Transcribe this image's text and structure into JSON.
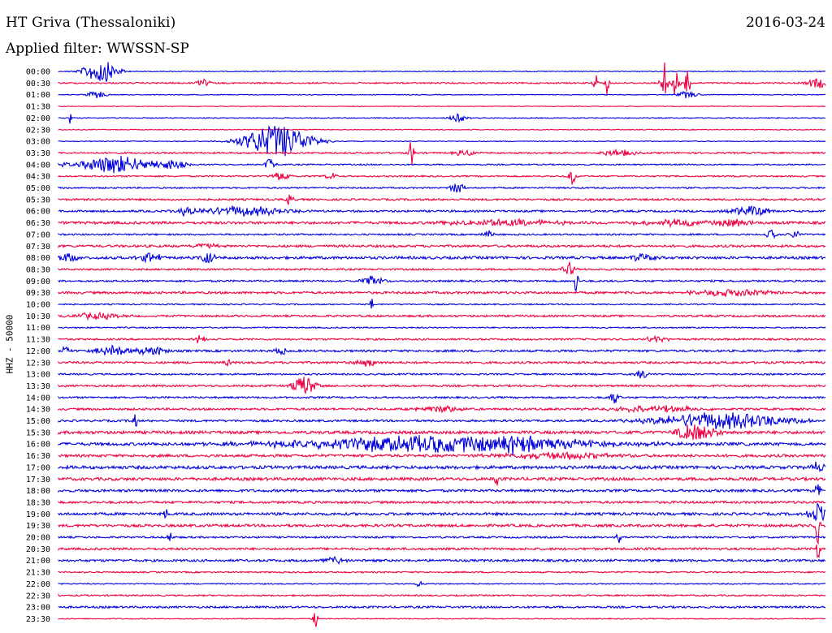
{
  "header": {
    "station": "HT Griva (Thessaloniki)",
    "date": "2016-03-24",
    "filter": "Applied filter: WWSSN-SP"
  },
  "axis": {
    "channel_label": "HHZ - 50000"
  },
  "colors": {
    "trace_a": "#0000dd",
    "trace_b": "#ee0040",
    "text": "#000000",
    "background": "#ffffff"
  },
  "chart_data": {
    "type": "line",
    "title": "HT Griva (Thessaloniki)",
    "subtitle": "Applied filter: WWSSN-SP",
    "ylabel": "HHZ - 50000",
    "row_colors": [
      "#0000dd",
      "#ee0040"
    ],
    "rows": [
      {
        "label": "00:00",
        "noise": 0.5,
        "events": [
          {
            "x": 0.055,
            "amp": 14,
            "width": 0.015
          }
        ]
      },
      {
        "label": "00:30",
        "noise": 0.9,
        "events": [
          {
            "x": 0.19,
            "amp": 5,
            "width": 0.006
          },
          {
            "x": 0.7,
            "amp": 18,
            "width": 0.002
          },
          {
            "x": 0.715,
            "amp": 14,
            "width": 0.002
          },
          {
            "x": 0.79,
            "amp": 32,
            "width": 0.003
          },
          {
            "x": 0.805,
            "amp": 20,
            "width": 0.003
          },
          {
            "x": 0.82,
            "amp": 16,
            "width": 0.003
          },
          {
            "x": 0.99,
            "amp": 6,
            "width": 0.01
          }
        ]
      },
      {
        "label": "01:00",
        "noise": 0.5,
        "events": [
          {
            "x": 0.05,
            "amp": 4,
            "width": 0.01
          },
          {
            "x": 0.82,
            "amp": 4,
            "width": 0.01
          }
        ]
      },
      {
        "label": "01:30",
        "noise": 0.4,
        "events": []
      },
      {
        "label": "02:00",
        "noise": 0.6,
        "events": [
          {
            "x": 0.016,
            "amp": 13,
            "width": 0.001
          },
          {
            "x": 0.52,
            "amp": 5,
            "width": 0.008
          }
        ]
      },
      {
        "label": "02:30",
        "noise": 0.5,
        "events": []
      },
      {
        "label": "03:00",
        "noise": 0.5,
        "events": [
          {
            "x": 0.285,
            "amp": 20,
            "width": 0.03
          }
        ]
      },
      {
        "label": "03:30",
        "noise": 1.0,
        "events": [
          {
            "x": 0.46,
            "amp": 18,
            "width": 0.002
          },
          {
            "x": 0.53,
            "amp": 4,
            "width": 0.01
          },
          {
            "x": 0.73,
            "amp": 4,
            "width": 0.015
          }
        ]
      },
      {
        "label": "04:00",
        "noise": 0.8,
        "events": [
          {
            "x": 0.008,
            "amp": 10,
            "width": 0.002
          },
          {
            "x": 0.075,
            "amp": 11,
            "width": 0.03
          },
          {
            "x": 0.145,
            "amp": 6,
            "width": 0.015
          },
          {
            "x": 0.275,
            "amp": 7,
            "width": 0.005
          }
        ]
      },
      {
        "label": "04:30",
        "noise": 0.9,
        "events": [
          {
            "x": 0.29,
            "amp": 6,
            "width": 0.008
          },
          {
            "x": 0.355,
            "amp": 4,
            "width": 0.005
          },
          {
            "x": 0.67,
            "amp": 12,
            "width": 0.003
          }
        ]
      },
      {
        "label": "05:00",
        "noise": 0.9,
        "events": [
          {
            "x": 0.52,
            "amp": 7,
            "width": 0.006
          }
        ]
      },
      {
        "label": "05:30",
        "noise": 1.2,
        "events": [
          {
            "x": 0.3,
            "amp": 6,
            "width": 0.004
          }
        ]
      },
      {
        "label": "06:00",
        "noise": 1.2,
        "events": [
          {
            "x": 0.165,
            "amp": 5,
            "width": 0.008
          },
          {
            "x": 0.24,
            "amp": 6,
            "width": 0.04
          },
          {
            "x": 0.9,
            "amp": 6,
            "width": 0.02
          }
        ]
      },
      {
        "label": "06:30",
        "noise": 1.6,
        "events": [
          {
            "x": 0.58,
            "amp": 4,
            "width": 0.05
          },
          {
            "x": 0.8,
            "amp": 4,
            "width": 0.03
          },
          {
            "x": 0.88,
            "amp": 4,
            "width": 0.02
          }
        ]
      },
      {
        "label": "07:00",
        "noise": 1.0,
        "events": [
          {
            "x": 0.56,
            "amp": 5,
            "width": 0.005
          },
          {
            "x": 0.93,
            "amp": 6,
            "width": 0.005
          },
          {
            "x": 0.96,
            "amp": 5,
            "width": 0.005
          }
        ]
      },
      {
        "label": "07:30",
        "noise": 1.4,
        "events": [
          {
            "x": 0.19,
            "amp": 4,
            "width": 0.01
          }
        ]
      },
      {
        "label": "08:00",
        "noise": 1.6,
        "events": [
          {
            "x": 0.01,
            "amp": 5,
            "width": 0.01
          },
          {
            "x": 0.12,
            "amp": 6,
            "width": 0.01
          },
          {
            "x": 0.195,
            "amp": 8,
            "width": 0.006
          },
          {
            "x": 0.76,
            "amp": 5,
            "width": 0.01
          }
        ]
      },
      {
        "label": "08:30",
        "noise": 1.1,
        "events": [
          {
            "x": 0.665,
            "amp": 9,
            "width": 0.005
          }
        ]
      },
      {
        "label": "09:00",
        "noise": 1.1,
        "events": [
          {
            "x": 0.41,
            "amp": 6,
            "width": 0.01
          },
          {
            "x": 0.675,
            "amp": 16,
            "width": 0.002
          }
        ]
      },
      {
        "label": "09:30",
        "noise": 1.4,
        "events": [
          {
            "x": 0.88,
            "amp": 4,
            "width": 0.04
          }
        ]
      },
      {
        "label": "10:00",
        "noise": 0.8,
        "events": [
          {
            "x": 0.408,
            "amp": 12,
            "width": 0.001
          }
        ]
      },
      {
        "label": "10:30",
        "noise": 1.2,
        "events": [
          {
            "x": 0.05,
            "amp": 4,
            "width": 0.02
          }
        ]
      },
      {
        "label": "11:00",
        "noise": 0.8,
        "events": []
      },
      {
        "label": "11:30",
        "noise": 1.1,
        "events": [
          {
            "x": 0.185,
            "amp": 5,
            "width": 0.005
          },
          {
            "x": 0.78,
            "amp": 4,
            "width": 0.01
          }
        ]
      },
      {
        "label": "12:00",
        "noise": 1.3,
        "events": [
          {
            "x": 0.01,
            "amp": 7,
            "width": 0.003
          },
          {
            "x": 0.07,
            "amp": 7,
            "width": 0.015
          },
          {
            "x": 0.12,
            "amp": 5,
            "width": 0.015
          },
          {
            "x": 0.29,
            "amp": 5,
            "width": 0.005
          }
        ]
      },
      {
        "label": "12:30",
        "noise": 1.3,
        "events": [
          {
            "x": 0.22,
            "amp": 6,
            "width": 0.003
          },
          {
            "x": 0.4,
            "amp": 5,
            "width": 0.01
          }
        ]
      },
      {
        "label": "13:00",
        "noise": 1.0,
        "events": [
          {
            "x": 0.76,
            "amp": 6,
            "width": 0.005
          }
        ]
      },
      {
        "label": "13:30",
        "noise": 1.2,
        "events": [
          {
            "x": 0.32,
            "amp": 13,
            "width": 0.01
          }
        ]
      },
      {
        "label": "14:00",
        "noise": 1.1,
        "events": [
          {
            "x": 0.725,
            "amp": 8,
            "width": 0.004
          }
        ]
      },
      {
        "label": "14:30",
        "noise": 1.3,
        "events": [
          {
            "x": 0.5,
            "amp": 4,
            "width": 0.02
          },
          {
            "x": 0.78,
            "amp": 4,
            "width": 0.04
          }
        ]
      },
      {
        "label": "15:00",
        "noise": 1.3,
        "events": [
          {
            "x": 0.1,
            "amp": 10,
            "width": 0.002
          },
          {
            "x": 0.865,
            "amp": 10,
            "width": 0.06
          }
        ]
      },
      {
        "label": "15:30",
        "noise": 1.8,
        "events": [
          {
            "x": 0.83,
            "amp": 10,
            "width": 0.02
          }
        ]
      },
      {
        "label": "16:00",
        "noise": 1.8,
        "events": [
          {
            "x": 0.5,
            "amp": 10,
            "width": 0.14
          },
          {
            "x": 0.6,
            "amp": 8,
            "width": 0.02
          }
        ]
      },
      {
        "label": "16:30",
        "noise": 1.6,
        "events": [
          {
            "x": 0.65,
            "amp": 4,
            "width": 0.05
          }
        ]
      },
      {
        "label": "17:00",
        "noise": 1.9,
        "events": [
          {
            "x": 0.99,
            "amp": 6,
            "width": 0.01
          }
        ]
      },
      {
        "label": "17:30",
        "noise": 1.8,
        "events": [
          {
            "x": 0.572,
            "amp": 12,
            "width": 0.002
          }
        ]
      },
      {
        "label": "18:00",
        "noise": 1.5,
        "events": [
          {
            "x": 0.99,
            "amp": 12,
            "width": 0.003
          }
        ]
      },
      {
        "label": "18:30",
        "noise": 1.4,
        "events": []
      },
      {
        "label": "19:00",
        "noise": 1.6,
        "events": [
          {
            "x": 0.14,
            "amp": 8,
            "width": 0.002
          },
          {
            "x": 0.99,
            "amp": 14,
            "width": 0.008
          }
        ]
      },
      {
        "label": "19:30",
        "noise": 1.6,
        "events": [
          {
            "x": 0.99,
            "amp": 30,
            "width": 0.002
          }
        ]
      },
      {
        "label": "20:00",
        "noise": 1.1,
        "events": [
          {
            "x": 0.145,
            "amp": 7,
            "width": 0.002
          },
          {
            "x": 0.73,
            "amp": 9,
            "width": 0.002
          }
        ]
      },
      {
        "label": "20:30",
        "noise": 1.4,
        "events": [
          {
            "x": 0.99,
            "amp": 14,
            "width": 0.002
          }
        ]
      },
      {
        "label": "21:00",
        "noise": 1.4,
        "events": [
          {
            "x": 0.36,
            "amp": 4,
            "width": 0.01
          }
        ]
      },
      {
        "label": "21:30",
        "noise": 0.9,
        "events": []
      },
      {
        "label": "22:00",
        "noise": 0.7,
        "events": [
          {
            "x": 0.47,
            "amp": 4,
            "width": 0.003
          }
        ]
      },
      {
        "label": "22:30",
        "noise": 0.9,
        "events": []
      },
      {
        "label": "23:00",
        "noise": 1.2,
        "events": []
      },
      {
        "label": "23:30",
        "noise": 0.6,
        "events": [
          {
            "x": 0.335,
            "amp": 14,
            "width": 0.002
          }
        ]
      }
    ]
  }
}
